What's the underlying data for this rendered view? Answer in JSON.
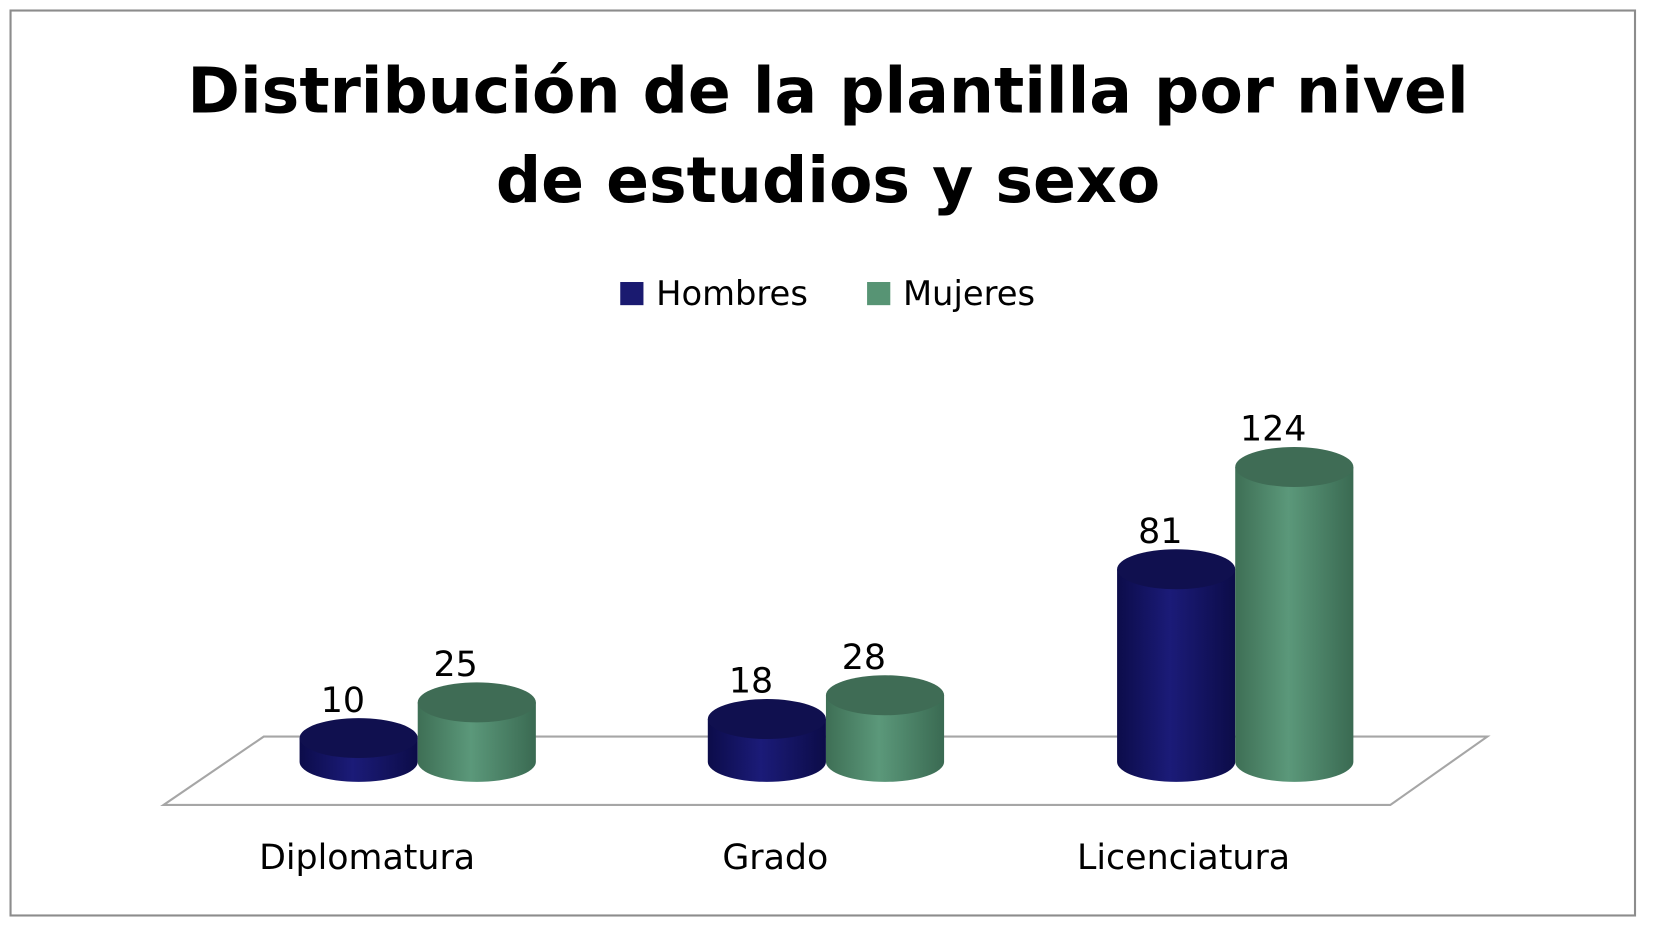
{
  "chart_data": {
    "type": "bar",
    "style": "3d-cylinder",
    "title_lines": [
      "Distribución de la plantilla por nivel",
      "de estudios y sexo"
    ],
    "categories": [
      "Diplomatura",
      "Grado",
      "Licenciatura"
    ],
    "series": [
      {
        "name": "Hombres",
        "values": [
          10,
          18,
          81
        ],
        "color": "#1a1a70"
      },
      {
        "name": "Mujeres",
        "values": [
          25,
          28,
          124
        ],
        "color": "#579474"
      }
    ],
    "legend_position": "top",
    "xlabel": "",
    "ylabel": "",
    "grid": false,
    "data_labels": true
  }
}
